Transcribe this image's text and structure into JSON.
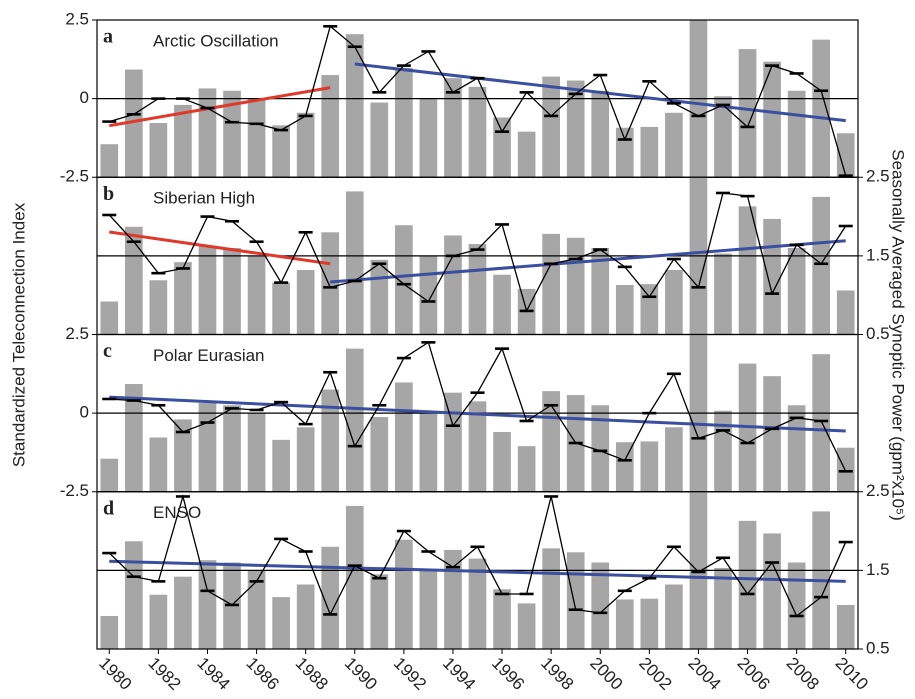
{
  "y_label": "Standardized Teleconnection Index",
  "y2_label": "Seasonally Averaged Synoptic Power (gpm²x10⁵)",
  "chart_data": [
    {
      "type": "combo",
      "label": "a",
      "title": "Arctic Oscillation",
      "x": [
        1980,
        1981,
        1982,
        1983,
        1984,
        1985,
        1986,
        1987,
        1988,
        1989,
        1990,
        1991,
        1992,
        1993,
        1994,
        1995,
        1996,
        1997,
        1998,
        1999,
        2000,
        2001,
        2002,
        2003,
        2004,
        2005,
        2006,
        2007,
        2008,
        2009,
        2010
      ],
      "xlim": [
        1979.5,
        2010.5
      ],
      "ylim": [
        -2.5,
        2.5
      ],
      "yticks": [
        2.5,
        0,
        -2.5
      ],
      "y2lim": [
        0.5,
        2.5
      ],
      "series": [
        {
          "type": "bar",
          "axis": "y2",
          "color": "#a6a6a6",
          "values": [
            0.92,
            1.87,
            1.19,
            1.42,
            1.63,
            1.6,
            1.5,
            1.16,
            1.32,
            1.8,
            2.32,
            1.45,
            1.89,
            1.5,
            1.76,
            1.65,
            1.26,
            1.08,
            1.78,
            1.73,
            1.6,
            1.13,
            1.14,
            1.32,
            2.5,
            1.53,
            2.13,
            1.97,
            1.6,
            2.25,
            1.06
          ]
        },
        {
          "type": "line",
          "color": "#000000",
          "values": [
            -0.73,
            -0.5,
            0.0,
            0.0,
            -0.3,
            -0.75,
            -0.8,
            -1.0,
            -0.55,
            2.3,
            1.65,
            0.2,
            1.05,
            1.5,
            0.2,
            0.65,
            -1.05,
            0.2,
            -0.55,
            0.15,
            0.75,
            -1.3,
            0.55,
            -0.15,
            -0.55,
            -0.2,
            -0.9,
            1.05,
            0.8,
            0.25,
            -2.45
          ]
        }
      ],
      "trends": [
        {
          "color": "#e0392b",
          "x": [
            1980,
            1989
          ],
          "values": [
            -0.86,
            0.35
          ]
        },
        {
          "color": "#3a4fa0",
          "x": [
            1990,
            2010
          ],
          "values": [
            1.1,
            -0.7
          ]
        }
      ]
    },
    {
      "type": "combo",
      "label": "b",
      "title": "Siberian High",
      "x": [
        1980,
        1981,
        1982,
        1983,
        1984,
        1985,
        1986,
        1987,
        1988,
        1989,
        1990,
        1991,
        1992,
        1993,
        1994,
        1995,
        1996,
        1997,
        1998,
        1999,
        2000,
        2001,
        2002,
        2003,
        2004,
        2005,
        2006,
        2007,
        2008,
        2009,
        2010
      ],
      "xlim": [
        1979.5,
        2010.5
      ],
      "ylim": [
        -2.5,
        2.5
      ],
      "y2lim": [
        0.5,
        2.5
      ],
      "y2ticks": [
        2.5,
        1.5,
        0.5
      ],
      "series": [
        {
          "type": "bar",
          "axis": "y2",
          "color": "#a6a6a6",
          "values": [
            0.92,
            1.87,
            1.19,
            1.42,
            1.63,
            1.6,
            1.5,
            1.16,
            1.32,
            1.8,
            2.32,
            1.45,
            1.89,
            1.5,
            1.76,
            1.65,
            1.26,
            1.08,
            1.78,
            1.73,
            1.6,
            1.13,
            1.14,
            1.32,
            2.5,
            1.53,
            2.13,
            1.97,
            1.6,
            2.25,
            1.06
          ]
        },
        {
          "type": "line",
          "color": "#000000",
          "values": [
            1.3,
            0.45,
            -0.55,
            -0.4,
            1.25,
            1.1,
            0.45,
            -0.85,
            0.75,
            -1.0,
            -0.8,
            -0.25,
            -0.9,
            -1.45,
            0.0,
            0.2,
            1.0,
            -1.75,
            -0.25,
            -0.1,
            0.2,
            -0.35,
            -1.3,
            -0.1,
            -1.0,
            2.0,
            1.9,
            -1.2,
            0.35,
            -0.25,
            0.95
          ]
        }
      ],
      "trends": [
        {
          "color": "#e0392b",
          "x": [
            1980,
            1989
          ],
          "values": [
            0.76,
            -0.25
          ]
        },
        {
          "color": "#3a4fa0",
          "x": [
            1989,
            2010
          ],
          "values": [
            -0.83,
            0.48
          ]
        }
      ]
    },
    {
      "type": "combo",
      "label": "c",
      "title": "Polar Eurasian",
      "x": [
        1980,
        1981,
        1982,
        1983,
        1984,
        1985,
        1986,
        1987,
        1988,
        1989,
        1990,
        1991,
        1992,
        1993,
        1994,
        1995,
        1996,
        1997,
        1998,
        1999,
        2000,
        2001,
        2002,
        2003,
        2004,
        2005,
        2006,
        2007,
        2008,
        2009,
        2010
      ],
      "xlim": [
        1979.5,
        2010.5
      ],
      "ylim": [
        -2.5,
        2.5
      ],
      "yticks": [
        2.5,
        0,
        -2.5
      ],
      "y2lim": [
        0.5,
        2.5
      ],
      "series": [
        {
          "type": "bar",
          "axis": "y2",
          "color": "#a6a6a6",
          "values": [
            0.92,
            1.87,
            1.19,
            1.42,
            1.63,
            1.6,
            1.5,
            1.16,
            1.32,
            1.8,
            2.32,
            1.45,
            1.89,
            1.5,
            1.76,
            1.65,
            1.26,
            1.08,
            1.78,
            1.73,
            1.6,
            1.13,
            1.14,
            1.32,
            2.5,
            1.53,
            2.13,
            1.97,
            1.6,
            2.25,
            1.06
          ]
        },
        {
          "type": "line",
          "color": "#000000",
          "values": [
            0.45,
            0.4,
            0.25,
            -0.6,
            -0.3,
            0.15,
            0.1,
            0.35,
            -0.35,
            1.3,
            -1.05,
            0.25,
            1.75,
            2.25,
            -0.4,
            0.65,
            2.05,
            -0.25,
            0.25,
            -0.95,
            -1.2,
            -1.5,
            0.0,
            1.25,
            -0.8,
            -0.55,
            -0.95,
            -0.5,
            -0.15,
            -0.25,
            -1.85
          ]
        }
      ],
      "trends": [
        {
          "color": "#3a4fa0",
          "x": [
            1980,
            2010
          ],
          "values": [
            0.51,
            -0.57
          ]
        }
      ]
    },
    {
      "type": "combo",
      "label": "d",
      "title": "ENSO",
      "x": [
        1980,
        1981,
        1982,
        1983,
        1984,
        1985,
        1986,
        1987,
        1988,
        1989,
        1990,
        1991,
        1992,
        1993,
        1994,
        1995,
        1996,
        1997,
        1998,
        1999,
        2000,
        2001,
        2002,
        2003,
        2004,
        2005,
        2006,
        2007,
        2008,
        2009,
        2010
      ],
      "xlim": [
        1979.5,
        2010.5
      ],
      "xticks": [
        1980,
        1982,
        1984,
        1986,
        1988,
        1990,
        1992,
        1994,
        1996,
        1998,
        2000,
        2002,
        2004,
        2006,
        2008,
        2010
      ],
      "ylim": [
        -2.5,
        2.5
      ],
      "y2lim": [
        0.5,
        2.5
      ],
      "y2ticks": [
        2.5,
        1.5,
        0.5
      ],
      "series": [
        {
          "type": "bar",
          "axis": "y2",
          "color": "#a6a6a6",
          "values": [
            0.92,
            1.87,
            1.19,
            1.42,
            1.63,
            1.6,
            1.5,
            1.16,
            1.32,
            1.8,
            2.32,
            1.45,
            1.89,
            1.5,
            1.76,
            1.65,
            1.26,
            1.08,
            1.78,
            1.73,
            1.6,
            1.13,
            1.14,
            1.32,
            2.5,
            1.53,
            2.13,
            1.97,
            1.6,
            2.25,
            1.06
          ]
        },
        {
          "type": "line",
          "color": "#000000",
          "values": [
            0.55,
            -0.2,
            -0.35,
            2.35,
            -0.65,
            -1.1,
            -0.35,
            1.0,
            0.6,
            -1.4,
            0.15,
            -0.25,
            1.25,
            0.6,
            0.1,
            0.75,
            -0.75,
            -0.75,
            2.35,
            -1.25,
            -1.35,
            -0.65,
            -0.25,
            0.75,
            -0.05,
            0.4,
            -0.75,
            0.25,
            -1.45,
            -0.85,
            0.9
          ]
        }
      ],
      "trends": [
        {
          "color": "#3a4fa0",
          "x": [
            1980,
            2010
          ],
          "values": [
            0.29,
            -0.35
          ]
        }
      ]
    }
  ]
}
